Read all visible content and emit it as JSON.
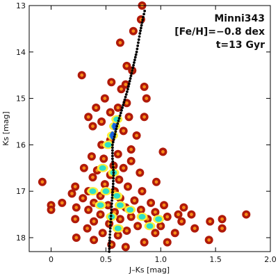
{
  "chart_data": {
    "type": "scatter",
    "title": "",
    "xlabel": "J–Ks [mag]",
    "ylabel": "Ks [mag]",
    "xlim": [
      -0.2,
      2.0
    ],
    "ylim": [
      18.3,
      13.0
    ],
    "y_inverted": true,
    "x_ticks": [
      0.0,
      0.5,
      1.0,
      1.5,
      2.0
    ],
    "x_tick_labels": [
      "0",
      "0.5",
      "1.0",
      "1.5",
      "2.0"
    ],
    "y_ticks": [
      13,
      14,
      15,
      16,
      17,
      18
    ],
    "y_tick_labels": [
      "13",
      "14",
      "15",
      "16",
      "17",
      "18"
    ],
    "grid": false,
    "annotations": [
      "Minni343",
      "[Fe/H]=−0.8 dex",
      "t=13 Gyr"
    ],
    "annotation_placement": "top-right",
    "colors": {
      "star_outer": "#b01a0a",
      "star_mid": "#ff9a1a",
      "star_inner": "#ffee3a",
      "density_low": "#2fe0c8",
      "density_high": "#1a5fe0",
      "isochrone": "#000000"
    },
    "isochrone": [
      {
        "x": 0.53,
        "y": 18.3
      },
      {
        "x": 0.535,
        "y": 18.0
      },
      {
        "x": 0.545,
        "y": 17.6
      },
      {
        "x": 0.555,
        "y": 17.2
      },
      {
        "x": 0.565,
        "y": 16.9
      },
      {
        "x": 0.57,
        "y": 16.6
      },
      {
        "x": 0.56,
        "y": 16.3
      },
      {
        "x": 0.56,
        "y": 16.0
      },
      {
        "x": 0.6,
        "y": 15.6
      },
      {
        "x": 0.65,
        "y": 15.2
      },
      {
        "x": 0.7,
        "y": 14.8
      },
      {
        "x": 0.74,
        "y": 14.4
      },
      {
        "x": 0.78,
        "y": 14.0
      },
      {
        "x": 0.81,
        "y": 13.6
      },
      {
        "x": 0.84,
        "y": 13.25
      },
      {
        "x": 0.86,
        "y": 13.05
      }
    ],
    "points": [
      {
        "x": 0.83,
        "y": 13.0
      },
      {
        "x": 0.82,
        "y": 13.3
      },
      {
        "x": 0.75,
        "y": 13.55
      },
      {
        "x": 0.63,
        "y": 13.8
      },
      {
        "x": 0.69,
        "y": 14.3
      },
      {
        "x": 0.74,
        "y": 14.4
      },
      {
        "x": 0.28,
        "y": 14.5
      },
      {
        "x": 0.55,
        "y": 14.65
      },
      {
        "x": 0.68,
        "y": 14.7
      },
      {
        "x": 0.85,
        "y": 14.75
      },
      {
        "x": 0.64,
        "y": 14.8
      },
      {
        "x": 0.49,
        "y": 15.0
      },
      {
        "x": 0.87,
        "y": 15.0
      },
      {
        "x": 0.41,
        "y": 15.2
      },
      {
        "x": 0.69,
        "y": 15.1
      },
      {
        "x": 0.61,
        "y": 15.2
      },
      {
        "x": 0.54,
        "y": 15.3
      },
      {
        "x": 0.34,
        "y": 15.4
      },
      {
        "x": 0.46,
        "y": 15.5
      },
      {
        "x": 0.71,
        "y": 15.4
      },
      {
        "x": 0.85,
        "y": 15.4
      },
      {
        "x": 0.38,
        "y": 15.6
      },
      {
        "x": 0.66,
        "y": 15.7
      },
      {
        "x": 0.78,
        "y": 15.8
      },
      {
        "x": 0.54,
        "y": 15.9
      },
      {
        "x": 0.46,
        "y": 16.0
      },
      {
        "x": 0.73,
        "y": 16.1
      },
      {
        "x": 1.02,
        "y": 16.15
      },
      {
        "x": 0.61,
        "y": 16.2
      },
      {
        "x": 0.37,
        "y": 16.25
      },
      {
        "x": 0.48,
        "y": 16.3
      },
      {
        "x": 0.73,
        "y": 16.35
      },
      {
        "x": 0.57,
        "y": 16.45
      },
      {
        "x": 0.3,
        "y": 16.5
      },
      {
        "x": 0.42,
        "y": 16.55
      },
      {
        "x": 0.66,
        "y": 16.5
      },
      {
        "x": 0.81,
        "y": 16.6
      },
      {
        "x": 0.54,
        "y": 16.65
      },
      {
        "x": 0.38,
        "y": 16.7
      },
      {
        "x": 0.62,
        "y": 16.75
      },
      {
        "x": -0.08,
        "y": 16.8
      },
      {
        "x": 0.96,
        "y": 16.8
      },
      {
        "x": 0.49,
        "y": 16.85
      },
      {
        "x": 0.22,
        "y": 16.9
      },
      {
        "x": 0.7,
        "y": 16.9
      },
      {
        "x": 0.34,
        "y": 17.0
      },
      {
        "x": 0.58,
        "y": 17.0
      },
      {
        "x": 0.83,
        "y": 17.0
      },
      {
        "x": 0.19,
        "y": 17.05
      },
      {
        "x": 0.45,
        "y": 17.1
      },
      {
        "x": 0.29,
        "y": 17.15
      },
      {
        "x": 0.63,
        "y": 17.15
      },
      {
        "x": 0.76,
        "y": 17.2
      },
      {
        "x": 0.91,
        "y": 17.25
      },
      {
        "x": 0.1,
        "y": 17.25
      },
      {
        "x": 0.39,
        "y": 17.25
      },
      {
        "x": 0.0,
        "y": 17.3
      },
      {
        "x": 0.52,
        "y": 17.3
      },
      {
        "x": 1.03,
        "y": 17.3
      },
      {
        "x": 0.23,
        "y": 17.35
      },
      {
        "x": 0.68,
        "y": 17.35
      },
      {
        "x": 1.21,
        "y": 17.35
      },
      {
        "x": 0.0,
        "y": 17.4
      },
      {
        "x": 0.34,
        "y": 17.4
      },
      {
        "x": 0.82,
        "y": 17.4
      },
      {
        "x": 0.58,
        "y": 17.45
      },
      {
        "x": 0.95,
        "y": 17.45
      },
      {
        "x": 1.16,
        "y": 17.5
      },
      {
        "x": 1.28,
        "y": 17.5
      },
      {
        "x": 1.78,
        "y": 17.5
      },
      {
        "x": 0.45,
        "y": 17.5
      },
      {
        "x": 0.73,
        "y": 17.55
      },
      {
        "x": 1.06,
        "y": 17.55
      },
      {
        "x": 0.22,
        "y": 17.6
      },
      {
        "x": 0.63,
        "y": 17.6
      },
      {
        "x": 0.88,
        "y": 17.6
      },
      {
        "x": 1.56,
        "y": 17.6
      },
      {
        "x": 0.39,
        "y": 17.65
      },
      {
        "x": 1.19,
        "y": 17.65
      },
      {
        "x": 1.45,
        "y": 17.65
      },
      {
        "x": 0.53,
        "y": 17.7
      },
      {
        "x": 0.79,
        "y": 17.75
      },
      {
        "x": 1.0,
        "y": 17.75
      },
      {
        "x": 0.33,
        "y": 17.8
      },
      {
        "x": 1.31,
        "y": 17.8
      },
      {
        "x": 1.56,
        "y": 17.8
      },
      {
        "x": 0.69,
        "y": 17.85
      },
      {
        "x": 0.47,
        "y": 17.9
      },
      {
        "x": 0.95,
        "y": 17.9
      },
      {
        "x": 1.13,
        "y": 17.9
      },
      {
        "x": 0.61,
        "y": 17.95
      },
      {
        "x": 0.23,
        "y": 18.0
      },
      {
        "x": 1.44,
        "y": 18.05
      },
      {
        "x": 0.39,
        "y": 18.05
      },
      {
        "x": 0.85,
        "y": 18.1
      },
      {
        "x": 1.06,
        "y": 18.1
      },
      {
        "x": 0.55,
        "y": 18.15
      },
      {
        "x": 0.68,
        "y": 18.2
      }
    ],
    "dense_regions": [
      {
        "x": 0.58,
        "y": 15.6,
        "level": "high"
      },
      {
        "x": 0.56,
        "y": 15.8,
        "level": "high"
      },
      {
        "x": 0.6,
        "y": 15.45,
        "level": "low"
      },
      {
        "x": 0.52,
        "y": 16.0,
        "level": "low"
      },
      {
        "x": 0.47,
        "y": 16.5,
        "level": "low"
      },
      {
        "x": 0.57,
        "y": 16.6,
        "level": "low"
      },
      {
        "x": 0.38,
        "y": 17.0,
        "level": "low"
      },
      {
        "x": 0.5,
        "y": 17.0,
        "level": "low"
      },
      {
        "x": 0.6,
        "y": 17.1,
        "level": "low"
      },
      {
        "x": 0.45,
        "y": 17.3,
        "level": "low"
      },
      {
        "x": 0.63,
        "y": 17.3,
        "level": "low"
      },
      {
        "x": 0.72,
        "y": 17.4,
        "level": "low"
      },
      {
        "x": 0.55,
        "y": 17.55,
        "level": "low"
      },
      {
        "x": 0.83,
        "y": 17.55,
        "level": "low"
      },
      {
        "x": 0.98,
        "y": 17.6,
        "level": "low"
      },
      {
        "x": 0.61,
        "y": 17.8,
        "level": "low"
      },
      {
        "x": 0.9,
        "y": 17.75,
        "level": "low"
      }
    ]
  }
}
